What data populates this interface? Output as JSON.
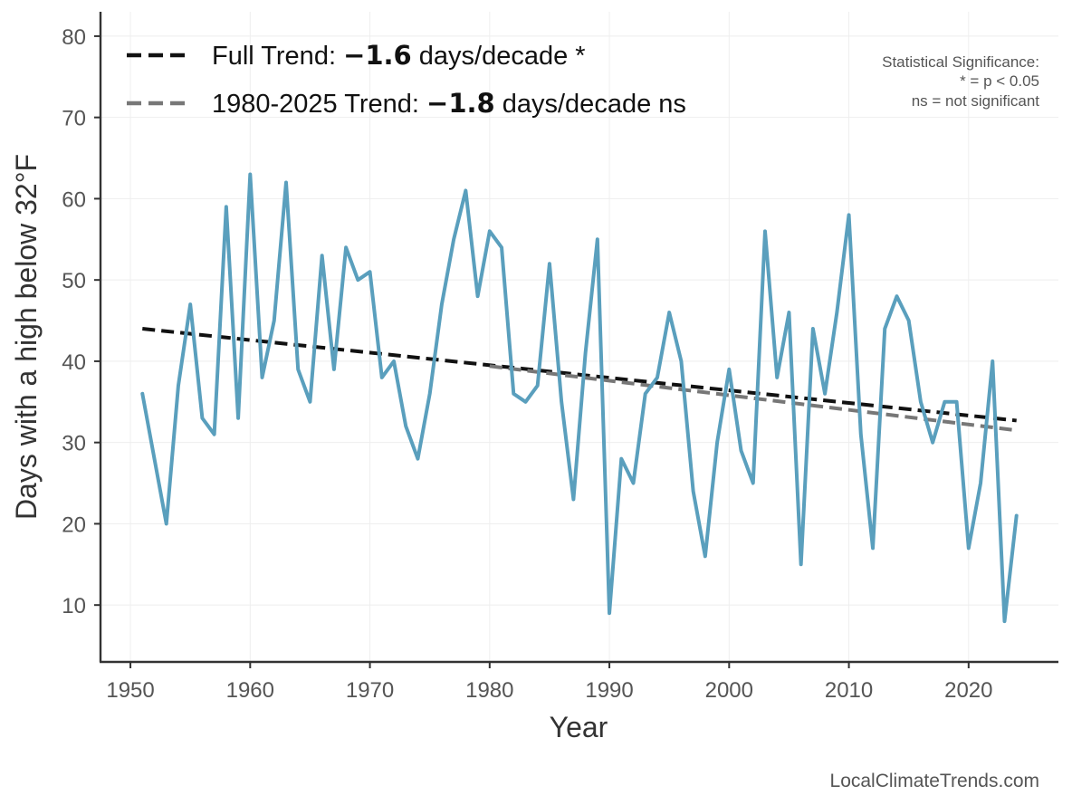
{
  "chart_data": {
    "type": "line",
    "xlabel": "Year",
    "ylabel": "Days with a high below 32°F",
    "xlim": [
      1947.5,
      2027.5
    ],
    "ylim": [
      3,
      83
    ],
    "xticks": [
      1950,
      1960,
      1970,
      1980,
      1990,
      2000,
      2010,
      2020
    ],
    "yticks": [
      10,
      20,
      30,
      40,
      50,
      60,
      70,
      80
    ],
    "grid": true,
    "legend_position": "top-left",
    "series": [
      {
        "color": "#5a9fbd",
        "x": [
          1951,
          1952,
          1953,
          1954,
          1955,
          1956,
          1957,
          1958,
          1959,
          1960,
          1961,
          1962,
          1963,
          1964,
          1965,
          1966,
          1967,
          1968,
          1969,
          1970,
          1971,
          1972,
          1973,
          1974,
          1975,
          1976,
          1977,
          1978,
          1979,
          1980,
          1981,
          1982,
          1983,
          1984,
          1985,
          1986,
          1987,
          1988,
          1989,
          1990,
          1991,
          1992,
          1993,
          1994,
          1995,
          1996,
          1997,
          1998,
          1999,
          2000,
          2001,
          2002,
          2003,
          2004,
          2005,
          2006,
          2007,
          2008,
          2009,
          2010,
          2011,
          2012,
          2013,
          2014,
          2015,
          2016,
          2017,
          2018,
          2019,
          2020,
          2021,
          2022,
          2023,
          2024
        ],
        "values": [
          36,
          28,
          20,
          37,
          47,
          33,
          31,
          59,
          33,
          63,
          38,
          45,
          62,
          39,
          35,
          53,
          39,
          54,
          50,
          51,
          38,
          40,
          32,
          28,
          36,
          47,
          55,
          61,
          48,
          56,
          54,
          36,
          35,
          37,
          52,
          35,
          23,
          41,
          55,
          9,
          28,
          25,
          36,
          38,
          46,
          40,
          24,
          16,
          30,
          39,
          29,
          25,
          56,
          38,
          46,
          15,
          44,
          36,
          46,
          58,
          31,
          17,
          44,
          48,
          45,
          35,
          30,
          35,
          35,
          17,
          25,
          40,
          8,
          21
        ]
      }
    ],
    "trends": [
      {
        "name": "Full Trend",
        "prefix": "Full Trend: ",
        "value": "−1.6",
        "suffix": " days/decade *",
        "color": "#111111",
        "x": [
          1951,
          2024
        ],
        "y": [
          44.0,
          32.7
        ]
      },
      {
        "name": "1980-2025 Trend",
        "prefix": "1980-2025 Trend: ",
        "value": "−1.8",
        "suffix": " days/decade ns",
        "color": "#777777",
        "x": [
          1980,
          2024
        ],
        "y": [
          39.4,
          31.5
        ]
      }
    ],
    "annotation": [
      "Statistical Significance:",
      "* = p < 0.05",
      "ns = not significant"
    ],
    "credit": "LocalClimateTrends.com"
  }
}
